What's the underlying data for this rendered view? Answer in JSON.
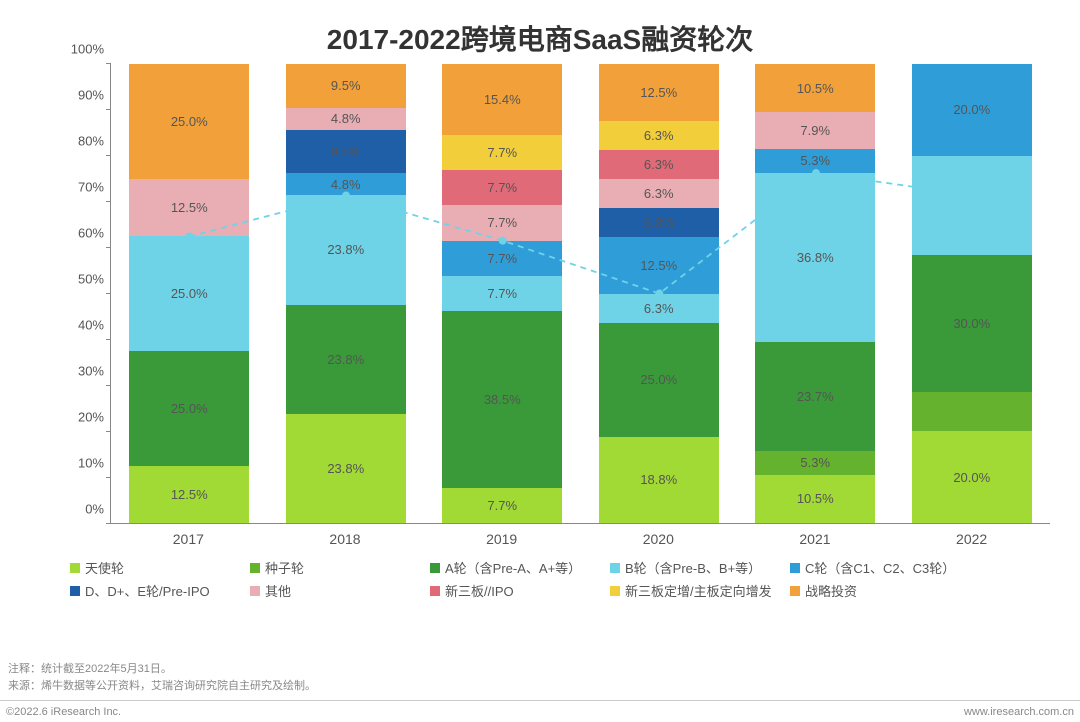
{
  "title": "2017-2022跨境电商SaaS融资轮次",
  "type": "stacked-bar-100pct",
  "background_color": "#ffffff",
  "title_style": {
    "fontsize": 28,
    "fontweight": "bold",
    "color": "#333333"
  },
  "axis_label_fontsize": 13,
  "segment_label_fontsize": 13,
  "segment_label_color": "#555555",
  "ylim": [
    0,
    100
  ],
  "ytick_step": 10,
  "y_suffix": "%",
  "categories": [
    "2017",
    "2018",
    "2019",
    "2020",
    "2021",
    "2022"
  ],
  "series": [
    {
      "key": "angel",
      "label": "天使轮",
      "color": "#a1d935"
    },
    {
      "key": "seed",
      "label": "种子轮",
      "color": "#65b22f"
    },
    {
      "key": "roundA",
      "label": "A轮（含Pre-A、A+等）",
      "color": "#3a9a3a"
    },
    {
      "key": "roundB",
      "label": "B轮（含Pre-B、B+等）",
      "color": "#6fd3e8"
    },
    {
      "key": "roundC",
      "label": "C轮（含C1、C2、C3轮）",
      "color": "#2f9ed8"
    },
    {
      "key": "roundD",
      "label": "D、D+、E轮/Pre-IPO",
      "color": "#1f5fa7"
    },
    {
      "key": "other",
      "label": "其他",
      "color": "#e9aeb4"
    },
    {
      "key": "neeq_ipo",
      "label": "新三板//IPO",
      "color": "#e06a78"
    },
    {
      "key": "placement",
      "label": "新三板定增/主板定向增发",
      "color": "#f2cf3a"
    },
    {
      "key": "strategic",
      "label": "战略投资",
      "color": "#f2a13a"
    }
  ],
  "data": {
    "2017": {
      "angel": 12.5,
      "roundA": 25.0,
      "roundB": 25.0,
      "other": 12.5,
      "strategic": 25.0
    },
    "2018": {
      "angel": 23.8,
      "roundA": 23.8,
      "roundB": 23.8,
      "roundC": 4.8,
      "roundD": 9.5,
      "other": 4.8,
      "strategic": 9.5
    },
    "2019": {
      "angel": 7.7,
      "roundA": 38.5,
      "roundB": 7.7,
      "roundC": 7.7,
      "other": 7.7,
      "neeq_ipo": 7.7,
      "placement": 7.7,
      "strategic": 15.4
    },
    "2020": {
      "angel": 18.8,
      "roundA": 25.0,
      "roundB": 6.3,
      "roundC": 12.5,
      "roundD": 6.3,
      "other": 6.3,
      "neeq_ipo": 6.3,
      "placement": 6.3,
      "strategic": 12.5
    },
    "2021": {
      "angel": 10.5,
      "seed": 5.3,
      "roundA": 23.7,
      "roundB": 36.8,
      "roundC": 5.3,
      "other": 7.9,
      "strategic": 10.5
    },
    "2022": {
      "angel": 20.0,
      "seed": 8.5,
      "roundA": 30.0,
      "roundB": 21.5,
      "roundC": 20.0
    }
  },
  "segment_labels": {
    "2017": {
      "angel": "12.5%",
      "roundA": "25.0%",
      "roundB": "25.0%",
      "other": "12.5%",
      "strategic": "25.0%"
    },
    "2018": {
      "angel": "23.8%",
      "roundA": "23.8%",
      "roundB": "23.8%",
      "roundC": "4.8%",
      "roundD": "9.5%",
      "other": "4.8%",
      "strategic": "9.5%"
    },
    "2019": {
      "angel": "7.7%",
      "roundA": "38.5%",
      "roundB": "7.7%",
      "roundC": "7.7%",
      "other": "7.7%",
      "neeq_ipo": "7.7%",
      "placement": "7.7%",
      "strategic": "15.4%"
    },
    "2020": {
      "angel": "18.8%",
      "roundA": "25.0%",
      "roundB": "6.3%",
      "roundC": "12.5%",
      "roundD": "6.3%",
      "other": "6.3%",
      "neeq_ipo": "6.3%",
      "placement": "6.3%",
      "strategic": "12.5%"
    },
    "2021": {
      "angel": "10.5%",
      "seed": "5.3%",
      "roundA": "23.7%",
      "roundB": "36.8%",
      "roundC": "5.3%",
      "other": "7.9%",
      "strategic": "10.5%"
    },
    "2022": {
      "angel": "20.0%",
      "roundA": "30.0%",
      "roundC": "20.0%"
    }
  },
  "line_series": {
    "color": "#6fd3e8",
    "dash": "6,5",
    "width": 1.8,
    "marker_color": "#6fd3e8",
    "marker_radius": 4,
    "y_per_category": {
      "2017": 62.5,
      "2018": 71.4,
      "2019": 61.6,
      "2020": 50.1,
      "2021": 76.3,
      "2022": 71.5
    }
  },
  "footnotes": {
    "line1": "注释：统计截至2022年5月31日。",
    "line2": "来源：烯牛数据等公开资料，艾瑞咨询研究院自主研究及绘制。"
  },
  "bottom": {
    "left": "©2022.6 iResearch Inc.",
    "right": "www.iresearch.com.cn"
  },
  "legend_item_min_width": 170
}
